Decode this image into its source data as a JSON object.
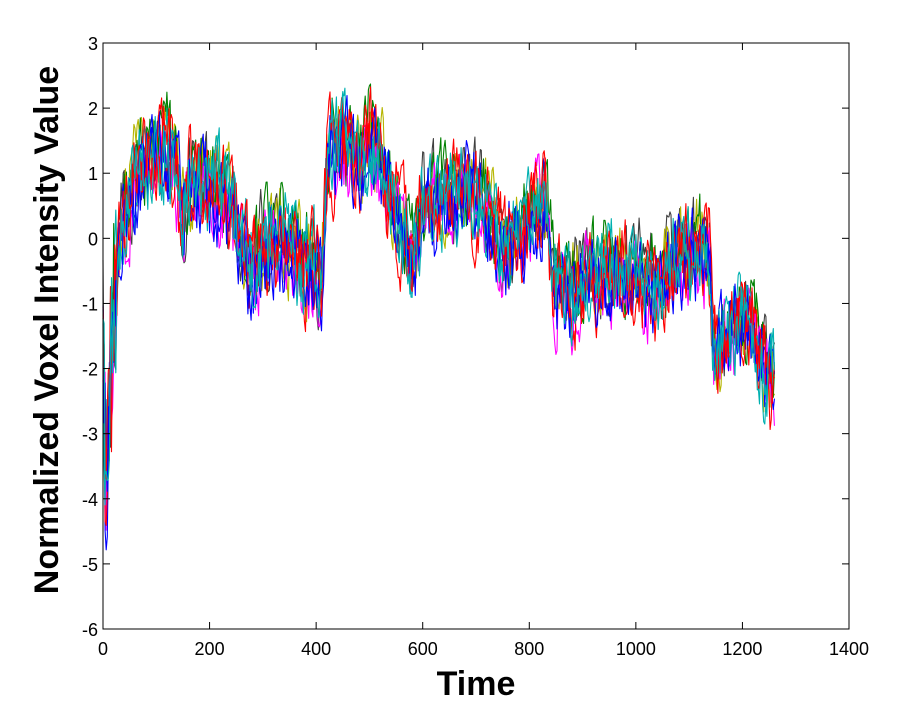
{
  "chart_data": {
    "type": "line",
    "title": "",
    "xlabel": "Time",
    "ylabel": "Normalized Voxel Intensity Value",
    "xlim": [
      0,
      1400
    ],
    "ylim": [
      -6,
      3
    ],
    "x_ticks": [
      0,
      200,
      400,
      600,
      800,
      1000,
      1200,
      1400
    ],
    "y_ticks": [
      -6,
      -5,
      -4,
      -3,
      -2,
      -1,
      0,
      1,
      2,
      3
    ],
    "x_tick_labels": [
      "0",
      "200",
      "400",
      "600",
      "800",
      "1000",
      "1200",
      "1400"
    ],
    "y_tick_labels": [
      "-6",
      "-5",
      "-4",
      "-3",
      "-2",
      "-1",
      "0",
      "1",
      "2",
      "3"
    ],
    "grid": false,
    "legend": "none",
    "n_points": 1260,
    "series_colors": [
      "#00b0b0",
      "#0000ff",
      "#b5b500",
      "#ff0000",
      "#008000",
      "#ff00ff",
      "#404040"
    ],
    "mean_trajectory": {
      "x": [
        0,
        5,
        10,
        20,
        35,
        60,
        90,
        120,
        140,
        150,
        160,
        180,
        200,
        230,
        260,
        280,
        300,
        340,
        380,
        410,
        420,
        450,
        480,
        500,
        530,
        560,
        580,
        600,
        640,
        680,
        720,
        760,
        800,
        830,
        845,
        880,
        920,
        960,
        1000,
        1040,
        1080,
        1120,
        1140,
        1145,
        1180,
        1200,
        1220,
        1240,
        1260
      ],
      "y": [
        -1.0,
        -3.5,
        -2.5,
        -1.0,
        0.2,
        0.9,
        1.2,
        1.3,
        0.9,
        0.2,
        0.8,
        0.9,
        0.8,
        0.6,
        -0.1,
        -0.6,
        -0.2,
        -0.1,
        -0.4,
        -0.6,
        1.3,
        1.4,
        1.1,
        1.5,
        0.8,
        0.2,
        -0.4,
        0.4,
        0.6,
        0.8,
        0.4,
        -0.2,
        0.3,
        0.6,
        -0.7,
        -0.9,
        -0.5,
        -0.6,
        -0.5,
        -0.9,
        -0.3,
        -0.2,
        -0.4,
        -1.8,
        -1.5,
        -1.3,
        -1.4,
        -2.1,
        -2.2
      ]
    }
  }
}
